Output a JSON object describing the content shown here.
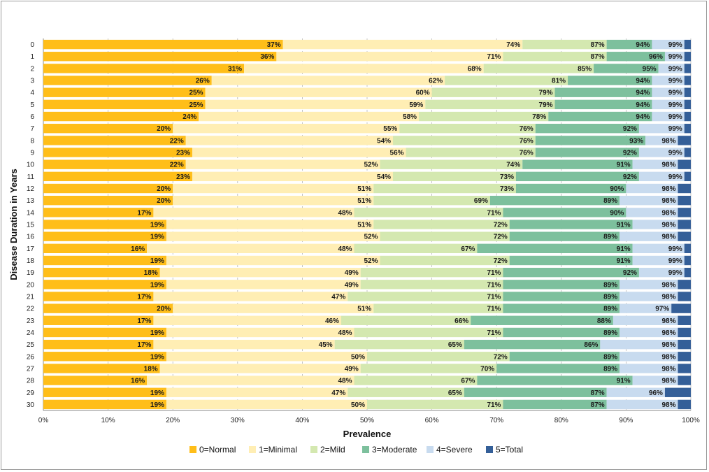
{
  "chart_data": {
    "type": "stacked-bar-horizontal-cumulative",
    "xlabel": "Prevalence",
    "ylabel": "Disease Duration in Years",
    "xlim": [
      0,
      100
    ],
    "x_ticks": [
      "0%",
      "10%",
      "20%",
      "30%",
      "40%",
      "50%",
      "60%",
      "70%",
      "80%",
      "90%",
      "100%"
    ],
    "grid": true,
    "legend_position": "bottom",
    "categories": [
      "0",
      "1",
      "2",
      "3",
      "4",
      "5",
      "6",
      "7",
      "8",
      "9",
      "10",
      "11",
      "12",
      "13",
      "14",
      "15",
      "16",
      "17",
      "18",
      "19",
      "20",
      "21",
      "22",
      "23",
      "24",
      "25",
      "26",
      "27",
      "28",
      "29",
      "30"
    ],
    "series": [
      {
        "name": "0=Normal",
        "color": "#FFBE19",
        "cumulative": [
          37,
          36,
          31,
          26,
          25,
          25,
          24,
          20,
          22,
          23,
          22,
          23,
          20,
          20,
          17,
          19,
          19,
          16,
          19,
          18,
          19,
          17,
          20,
          17,
          19,
          17,
          19,
          18,
          16,
          19,
          19
        ]
      },
      {
        "name": "1=Minimal",
        "color": "#FFEEB4",
        "cumulative": [
          74,
          71,
          68,
          62,
          60,
          59,
          58,
          55,
          54,
          56,
          52,
          54,
          51,
          51,
          48,
          51,
          52,
          48,
          52,
          49,
          49,
          47,
          51,
          46,
          48,
          45,
          50,
          49,
          48,
          47,
          50
        ]
      },
      {
        "name": "2=Mild",
        "color": "#D4E8B0",
        "cumulative": [
          87,
          87,
          85,
          81,
          79,
          79,
          78,
          76,
          76,
          76,
          74,
          73,
          73,
          69,
          71,
          72,
          72,
          67,
          72,
          71,
          71,
          71,
          71,
          66,
          71,
          65,
          72,
          70,
          67,
          65,
          71
        ]
      },
      {
        "name": "3=Moderate",
        "color": "#7DC09D",
        "cumulative": [
          94,
          96,
          95,
          94,
          94,
          94,
          94,
          92,
          93,
          92,
          91,
          92,
          90,
          89,
          90,
          91,
          89,
          91,
          91,
          92,
          89,
          89,
          89,
          88,
          89,
          86,
          89,
          89,
          91,
          87,
          87
        ]
      },
      {
        "name": "4=Severe",
        "color": "#C8DBEF",
        "cumulative": [
          99,
          99,
          99,
          99,
          99,
          99,
          99,
          99,
          98,
          99,
          98,
          99,
          98,
          98,
          98,
          98,
          98,
          99,
          99,
          99,
          98,
          98,
          97,
          98,
          98,
          98,
          98,
          98,
          98,
          96,
          98
        ]
      },
      {
        "name": "5=Total",
        "color": "#345F98",
        "cumulative": [
          100,
          100,
          100,
          100,
          100,
          100,
          100,
          100,
          100,
          100,
          100,
          100,
          100,
          100,
          100,
          100,
          100,
          100,
          100,
          100,
          100,
          100,
          100,
          100,
          100,
          100,
          100,
          100,
          100,
          100,
          100
        ]
      }
    ]
  }
}
